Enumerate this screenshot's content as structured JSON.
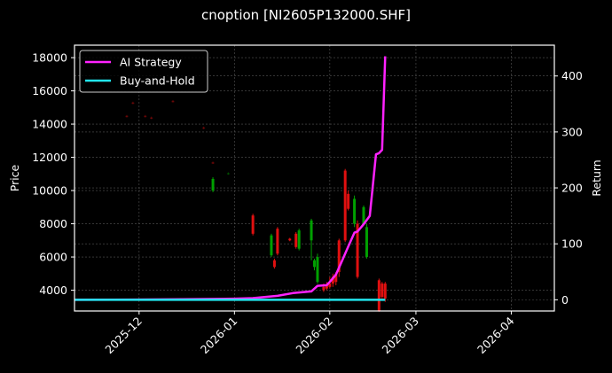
{
  "title": "cnoption [NI2605P132000.SHF]",
  "colors": {
    "background": "#000000",
    "axes": "#ffffff",
    "grid": "#555555",
    "up_candle": "#00a000",
    "down_candle": "#e01010",
    "ai_strategy": "#ff22ff",
    "buy_and_hold": "#22e5ee"
  },
  "chart_data": {
    "type": "line",
    "title": "cnoption [NI2605P132000.SHF]",
    "xlabel": "",
    "ylabel": "Price",
    "ylabel_right": "Return",
    "grid": true,
    "legend_position": "upper left",
    "legend": [
      "AI Strategy",
      "Buy-and-Hold"
    ],
    "x_ticks": [
      "2025-12",
      "2026-01",
      "2026-02",
      "2026-03",
      "2026-04"
    ],
    "y_ticks_left": [
      4000,
      6000,
      8000,
      10000,
      12000,
      14000,
      16000,
      18000
    ],
    "y_ticks_right": [
      0,
      100,
      200,
      300,
      400
    ],
    "ylim_left": [
      2750,
      18750
    ],
    "ylim_right": [
      -20,
      455
    ],
    "xlim": [
      "2025-11-10",
      "2026-04-15"
    ],
    "candles": [
      {
        "date": "2025-11-27",
        "open": 14500,
        "close": 14450,
        "high": 14550,
        "low": 14400
      },
      {
        "date": "2025-11-29",
        "open": 15300,
        "close": 15250,
        "high": 15350,
        "low": 15200
      },
      {
        "date": "2025-12-03",
        "open": 14500,
        "close": 14450,
        "high": 14550,
        "low": 14400
      },
      {
        "date": "2025-12-05",
        "open": 14400,
        "close": 14350,
        "high": 14450,
        "low": 14300
      },
      {
        "date": "2025-12-12",
        "open": 15400,
        "close": 15350,
        "high": 15450,
        "low": 15300
      },
      {
        "date": "2025-12-22",
        "open": 13800,
        "close": 13750,
        "high": 13850,
        "low": 13700
      },
      {
        "date": "2025-12-25",
        "open": 11700,
        "close": 11650,
        "high": 11750,
        "low": 11600
      },
      {
        "date": "2025-12-25",
        "open": 10000,
        "close": 10700,
        "high": 10800,
        "low": 9900
      },
      {
        "date": "2025-12-30",
        "open": 11000,
        "close": 11050,
        "high": 11100,
        "low": 10950
      },
      {
        "date": "2026-01-07",
        "open": 8500,
        "close": 7400,
        "high": 8600,
        "low": 7300
      },
      {
        "date": "2026-01-13",
        "open": 6100,
        "close": 7300,
        "high": 7400,
        "low": 6000
      },
      {
        "date": "2026-01-14",
        "open": 5800,
        "close": 5400,
        "high": 5900,
        "low": 5300
      },
      {
        "date": "2026-01-15",
        "open": 7700,
        "close": 6200,
        "high": 7800,
        "low": 6100
      },
      {
        "date": "2026-01-19",
        "open": 7100,
        "close": 7000,
        "high": 7150,
        "low": 6950
      },
      {
        "date": "2026-01-21",
        "open": 7400,
        "close": 6600,
        "high": 7500,
        "low": 6500
      },
      {
        "date": "2026-01-22",
        "open": 6500,
        "close": 7600,
        "high": 7700,
        "low": 6400
      },
      {
        "date": "2026-01-26",
        "open": 7000,
        "close": 8200,
        "high": 8300,
        "low": 5800
      },
      {
        "date": "2026-01-27",
        "open": 5400,
        "close": 5800,
        "high": 5900,
        "low": 5200
      },
      {
        "date": "2026-01-28",
        "open": 4500,
        "close": 6000,
        "high": 6200,
        "low": 4400
      },
      {
        "date": "2026-01-30",
        "open": 4200,
        "close": 4000,
        "high": 4400,
        "low": 3900
      },
      {
        "date": "2026-01-31",
        "open": 4300,
        "close": 4100,
        "high": 4500,
        "low": 4000
      },
      {
        "date": "2026-02-01",
        "open": 4400,
        "close": 4200,
        "high": 4800,
        "low": 4100
      },
      {
        "date": "2026-02-02",
        "open": 4800,
        "close": 4400,
        "high": 5000,
        "low": 4200
      },
      {
        "date": "2026-02-03",
        "open": 5000,
        "close": 4500,
        "high": 5100,
        "low": 4300
      },
      {
        "date": "2026-02-04",
        "open": 7000,
        "close": 5100,
        "high": 7100,
        "low": 4800
      },
      {
        "date": "2026-02-06",
        "open": 11200,
        "close": 7000,
        "high": 11300,
        "low": 6900
      },
      {
        "date": "2026-02-07",
        "open": 9800,
        "close": 8900,
        "high": 10000,
        "low": 8800
      },
      {
        "date": "2026-02-09",
        "open": 8000,
        "close": 9500,
        "high": 9700,
        "low": 7800
      },
      {
        "date": "2026-02-10",
        "open": 8000,
        "close": 4800,
        "high": 8200,
        "low": 4700
      },
      {
        "date": "2026-02-12",
        "open": 8000,
        "close": 9000,
        "high": 9100,
        "low": 7900
      },
      {
        "date": "2026-02-13",
        "open": 6000,
        "close": 7800,
        "high": 8000,
        "low": 5900
      },
      {
        "date": "2026-02-17",
        "open": 4600,
        "close": 2750,
        "high": 4700,
        "low": 2700
      },
      {
        "date": "2026-02-18",
        "open": 4400,
        "close": 3600,
        "high": 4500,
        "low": 3400
      },
      {
        "date": "2026-02-19",
        "open": 4400,
        "close": 3500,
        "high": 4500,
        "low": 3300
      }
    ],
    "series": [
      {
        "name": "AI Strategy",
        "x": [
          "2025-11-10",
          "2025-12-01",
          "2025-12-15",
          "2026-01-01",
          "2026-01-07",
          "2026-01-15",
          "2026-01-20",
          "2026-01-26",
          "2026-01-28",
          "2026-01-31",
          "2026-02-01",
          "2026-02-03",
          "2026-02-05",
          "2026-02-07",
          "2026-02-09",
          "2026-02-10",
          "2026-02-12",
          "2026-02-14",
          "2026-02-16",
          "2026-02-17",
          "2026-02-18",
          "2026-02-19"
        ],
        "values": [
          0,
          0.5,
          1,
          2,
          3,
          7,
          12,
          15,
          25,
          26,
          32,
          45,
          70,
          95,
          120,
          122,
          135,
          150,
          260,
          262,
          268,
          435
        ]
      },
      {
        "name": "Buy-and-Hold",
        "x": [
          "2025-11-10",
          "2026-02-19"
        ],
        "values": [
          0,
          0
        ]
      }
    ]
  }
}
